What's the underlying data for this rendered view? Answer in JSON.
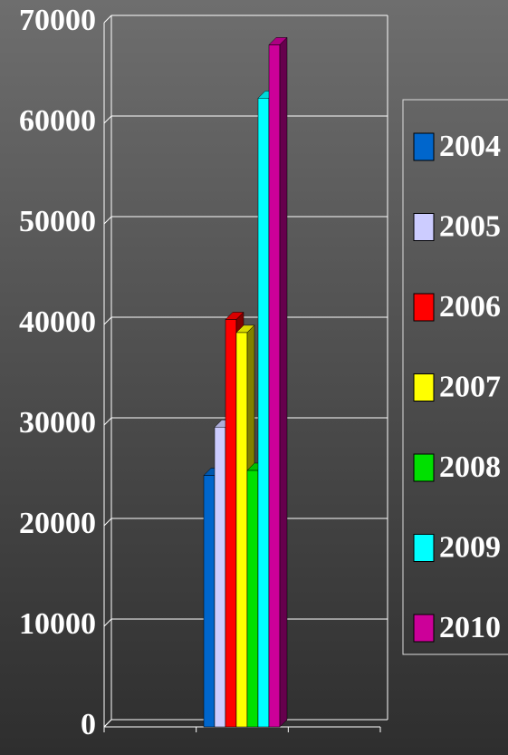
{
  "chart_data": {
    "type": "bar3d",
    "categories": [
      null
    ],
    "series": [
      {
        "name": "2004",
        "color": "#0066cc",
        "values": [
          25000
        ]
      },
      {
        "name": "2005",
        "color": "#ccccff",
        "values": [
          29800
        ]
      },
      {
        "name": "2006",
        "color": "#ff0000",
        "values": [
          40500
        ]
      },
      {
        "name": "2007",
        "color": "#ffff00",
        "values": [
          39200
        ]
      },
      {
        "name": "2008",
        "color": "#00e000",
        "values": [
          25500
        ]
      },
      {
        "name": "2009",
        "color": "#00ffff",
        "values": [
          62500
        ]
      },
      {
        "name": "2010",
        "color": "#cc0099",
        "values": [
          67800
        ]
      }
    ],
    "ylim": [
      0,
      70000
    ],
    "yticks": [
      0,
      10000,
      20000,
      30000,
      40000,
      50000,
      60000,
      70000
    ],
    "grid": true,
    "legend": "right"
  }
}
